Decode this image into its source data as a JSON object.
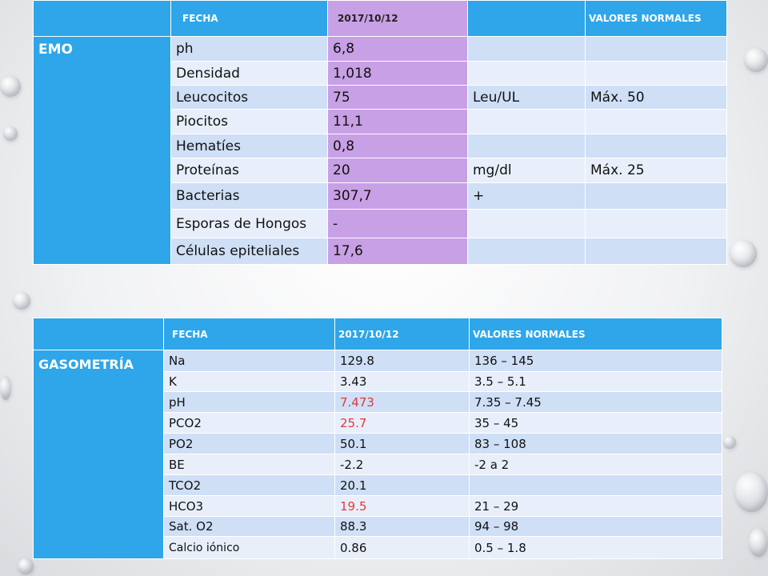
{
  "table1": {
    "header": [
      "",
      "FECHA",
      "2017/10/12",
      "",
      "VALORES NORMALES"
    ],
    "section_label": "EMO",
    "rows": [
      {
        "param": "ph",
        "value": "6,8",
        "unit": "",
        "normal": ""
      },
      {
        "param": "Densidad",
        "value": "1,018",
        "unit": "",
        "normal": ""
      },
      {
        "param": "Leucocitos",
        "value": "75",
        "unit": "Leu/UL",
        "normal": "Máx. 50"
      },
      {
        "param": "Piocitos",
        "value": "11,1",
        "unit": "",
        "normal": ""
      },
      {
        "param": "Hematíes",
        "value": "0,8",
        "unit": "",
        "normal": ""
      },
      {
        "param": "Proteínas",
        "value": "20",
        "unit": "mg/dl",
        "normal": "Máx. 25"
      },
      {
        "param": "Bacterias",
        "value": "307,7",
        "unit": "+",
        "normal": ""
      },
      {
        "param": "Esporas de Hongos",
        "value": "-",
        "unit": "",
        "normal": ""
      },
      {
        "param": "Células epiteliales",
        "value": "17,6",
        "unit": "",
        "normal": ""
      }
    ]
  },
  "table2": {
    "header": [
      "",
      "FECHA",
      "2017/10/12",
      "VALORES NORMALES"
    ],
    "section_label": "GASOMETRÍA",
    "rows": [
      {
        "param": "Na",
        "value": "129.8",
        "normal": " 136 – 145",
        "abnormal": false
      },
      {
        "param": "K",
        "value": "3.43",
        "normal": "3.5 – 5.1",
        "abnormal": false
      },
      {
        "param": "pH",
        "value": "7.473",
        "normal": "7.35 – 7.45",
        "abnormal": true
      },
      {
        "param": "PCO2",
        "value": "25.7",
        "normal": "35 – 45",
        "abnormal": true
      },
      {
        "param": "PO2",
        "value": "50.1",
        "normal": "83 – 108",
        "abnormal": false
      },
      {
        "param": "BE",
        "value": "-2.2",
        "normal": "-2 a 2",
        "abnormal": false
      },
      {
        "param": "TCO2",
        "value": "20.1",
        "normal": "",
        "abnormal": false
      },
      {
        "param": "HCO3",
        "value": "19.5",
        "normal": "21 – 29",
        "abnormal": true
      },
      {
        "param": "Sat. O2",
        "value": "88.3",
        "normal": "94 – 98",
        "abnormal": false
      },
      {
        "param": "Calcio iónico",
        "value": "0.86",
        "normal": "0.5 – 1.8",
        "abnormal": false
      }
    ]
  },
  "colors": {
    "header_blue": "#2ea6e9",
    "date_purple": "#c8a0e6",
    "row_dark": "#cfdff6",
    "row_light": "#e8effa",
    "abnormal_red": "#e03a3a"
  }
}
